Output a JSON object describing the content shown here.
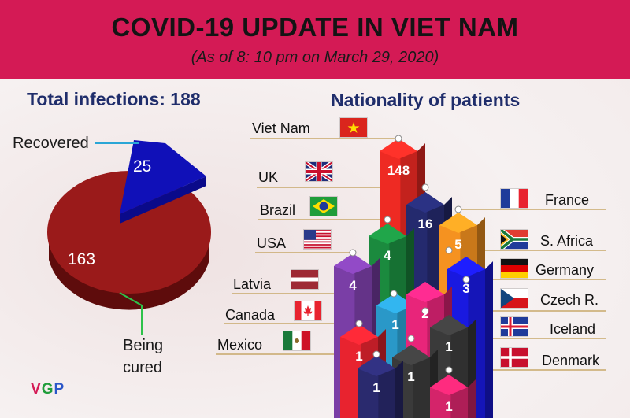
{
  "header": {
    "title": "COVID-19 UPDATE IN VIET NAM",
    "subtitle": "(As of 8: 10 pm on March 29, 2020)"
  },
  "total_heading": "Total infections: 188",
  "nationality_heading": "Nationality of patients",
  "logo": {
    "v": "V",
    "g": "G",
    "p": "P"
  },
  "chart_data": [
    {
      "type": "pie",
      "title": "Total infections: 188",
      "slices": [
        {
          "label": "Recovered",
          "value": 25,
          "color": "#1010b8"
        },
        {
          "label": "Being cured",
          "value": 163,
          "color": "#9a1a1a"
        }
      ]
    },
    {
      "type": "bar",
      "title": "Nationality of patients",
      "categories": [
        "Viet Nam",
        "UK",
        "Brazil",
        "USA",
        "Latvia",
        "Canada",
        "Mexico",
        "France",
        "S. Africa",
        "Germany",
        "Czech R.",
        "Iceland",
        "Denmark"
      ],
      "values": [
        148,
        16,
        4,
        4,
        1,
        1,
        1,
        5,
        1,
        3,
        2,
        1,
        1
      ],
      "colors": [
        "#ee2a23",
        "#242a6e",
        "#1b8a3e",
        "#7a3ea6",
        "#2a98c8",
        "#e8232f",
        "#2a2a6e",
        "#f59220",
        "#3a3a3a",
        "#1919e0",
        "#e8257a",
        "#3a3a3a",
        "#d4246a"
      ],
      "value_labels": [
        "148",
        "16",
        "4",
        "4",
        "1",
        "1",
        "1",
        "5",
        "1",
        "3",
        "2",
        "1",
        "1"
      ]
    }
  ]
}
